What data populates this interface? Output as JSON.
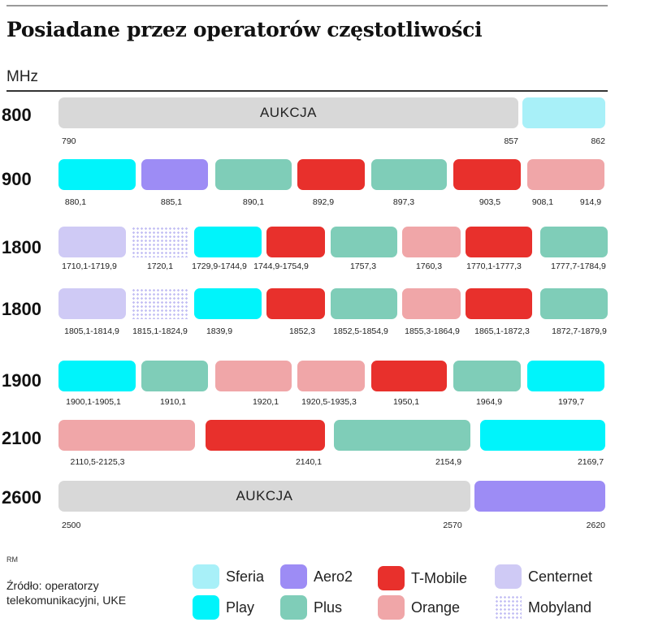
{
  "title": "Posiadane przez operatorów częstotliwości",
  "unit": "MHz",
  "source": "Źródło: operatorzy telekomunikacyjni, UKE",
  "author": "RM",
  "colors": {
    "Sferia": "#a8f0f8",
    "Play": "#00f4fb",
    "Aero2": "#9d8cf5",
    "Plus": "#7fcdb8",
    "T-Mobile": "#e8302c",
    "Orange": "#f0a6a8",
    "Centernet": "#cfcaf5",
    "Mobyland": "#c4c0f4",
    "Aukcja": "#d8d8d8"
  },
  "legend": [
    {
      "name": "Sferia",
      "label": "Sferia"
    },
    {
      "name": "Play",
      "label": "Play"
    },
    {
      "name": "Aero2",
      "label": "Aero2"
    },
    {
      "name": "Plus",
      "label": "Plus"
    },
    {
      "name": "T-Mobile",
      "label": "T-Mobile"
    },
    {
      "name": "Orange",
      "label": "Orange"
    },
    {
      "name": "Centernet",
      "label": "Centernet"
    },
    {
      "name": "Mobyland",
      "label": "Mobyland"
    }
  ],
  "chart_data": {
    "type": "bar",
    "bands": [
      {
        "label": "800",
        "segments": [
          {
            "operator": "Aukcja",
            "text": "AUKCJA"
          },
          {
            "operator": "Sferia"
          }
        ],
        "ticks": [
          "790",
          "857",
          "862"
        ]
      },
      {
        "label": "900",
        "segments": [
          {
            "operator": "Play"
          },
          {
            "operator": "Aero2"
          },
          {
            "operator": "Plus"
          },
          {
            "operator": "T-Mobile"
          },
          {
            "operator": "Plus"
          },
          {
            "operator": "T-Mobile"
          },
          {
            "operator": "Orange"
          }
        ],
        "ticks": [
          "880,1",
          "885,1",
          "890,1",
          "892,9",
          "897,3",
          "903,5",
          "908,1",
          "914,9"
        ]
      },
      {
        "label": "1800",
        "segments": [
          {
            "operator": "Centernet"
          },
          {
            "operator": "Mobyland"
          },
          {
            "operator": "Play"
          },
          {
            "operator": "T-Mobile"
          },
          {
            "operator": "Plus"
          },
          {
            "operator": "Orange"
          },
          {
            "operator": "T-Mobile"
          },
          {
            "operator": "Plus"
          }
        ],
        "ticks": [
          "1710,1-1719,9",
          "1720,1",
          "1729,9-1744,9",
          "1744,9-1754,9",
          "1757,3",
          "1760,3",
          "1770,1-1777,3",
          "1777,7-1784,9"
        ]
      },
      {
        "label": "1800",
        "segments": [
          {
            "operator": "Centernet"
          },
          {
            "operator": "Mobyland"
          },
          {
            "operator": "Play"
          },
          {
            "operator": "T-Mobile"
          },
          {
            "operator": "Plus"
          },
          {
            "operator": "Orange"
          },
          {
            "operator": "T-Mobile"
          },
          {
            "operator": "Plus"
          }
        ],
        "ticks": [
          "1805,1-1814,9",
          "1815,1-1824,9",
          "1839,9",
          "1852,3",
          "1852,5-1854,9",
          "1855,3-1864,9",
          "1865,1-1872,3",
          "1872,7-1879,9"
        ]
      },
      {
        "label": "1900",
        "segments": [
          {
            "operator": "Play"
          },
          {
            "operator": "Plus"
          },
          {
            "operator": "Orange"
          },
          {
            "operator": "Orange"
          },
          {
            "operator": "T-Mobile"
          },
          {
            "operator": "Plus"
          },
          {
            "operator": "Play"
          }
        ],
        "ticks": [
          "1900,1-1905,1",
          "1910,1",
          "1920,1",
          "1920,5-1935,3",
          "1950,1",
          "1964,9",
          "1979,7"
        ]
      },
      {
        "label": "2100",
        "segments": [
          {
            "operator": "Orange"
          },
          {
            "operator": "T-Mobile"
          },
          {
            "operator": "Plus"
          },
          {
            "operator": "Play"
          }
        ],
        "ticks": [
          "2110,5-2125,3",
          "2140,1",
          "2154,9",
          "2169,7"
        ]
      },
      {
        "label": "2600",
        "segments": [
          {
            "operator": "Aukcja",
            "text": "AUKCJA"
          },
          {
            "operator": "Aero2"
          }
        ],
        "ticks": [
          "2500",
          "2570",
          "2620"
        ]
      }
    ]
  }
}
